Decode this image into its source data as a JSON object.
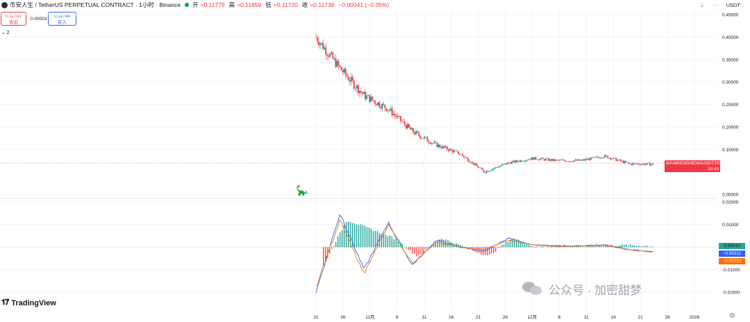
{
  "header": {
    "title": "币安人生 / TetherUS PERPETUAL CONTRACT · 1小时 · Binance",
    "ohlc": [
      {
        "label": "开",
        "value": "=0.11779"
      },
      {
        "label": "高",
        "value": "=0.11859"
      },
      {
        "label": "低",
        "value": "=0.11720"
      },
      {
        "label": "收",
        "value": "=0.11738"
      },
      {
        "label": "",
        "value": "−0.00041 (−0.35%)"
      }
    ]
  },
  "trade": {
    "sell_price": "0.11741",
    "sell_label": "卖出",
    "spread": "0.00003",
    "buy_price": "0.11744",
    "buy_label": "买入"
  },
  "indicator_collapse": "⌄ 2",
  "top_right": {
    "currency": "USDT",
    "arrow_icon": "download-arrow-icon",
    "more_icon": "more-dots-icon"
  },
  "price_tag": {
    "symbol": "BIANRENSHENGUSDT.P",
    "price": "0.11738",
    "countdown": "33:43"
  },
  "indicator_tags": [
    "0.00010",
    "−0.00211",
    "−0.00221"
  ],
  "logo": {
    "name": "TradingView",
    "icon": "tradingview-logo-icon"
  },
  "watermark": {
    "text": "公众号 · 加密甜梦",
    "icon": "wechat-icon"
  },
  "colors": {
    "up": "#089981",
    "down": "#f23645",
    "macd": "#2962ff",
    "signal": "#ff6d00",
    "hist_up": "#26a69a",
    "hist_down": "#ff5252"
  },
  "chart_data": [
    {
      "type": "line",
      "name": "price",
      "x": [
        "21",
        "26",
        "11月",
        "6",
        "11",
        "16",
        "21",
        "26",
        "12月",
        "6",
        "11",
        "16",
        "21",
        "26",
        "2026"
      ],
      "y": [
        0.4,
        0.33,
        0.27,
        0.24,
        0.19,
        0.16,
        0.14,
        0.1,
        0.12,
        0.13,
        0.125,
        0.125,
        0.135,
        0.118,
        0.117
      ],
      "ylim": [
        0.05,
        0.45
      ],
      "yticks": [
        "0.45000",
        "0.40000",
        "0.35000",
        "0.30000",
        "0.25000",
        "0.20000",
        "0.15000",
        "0.05000"
      ],
      "last_price": 0.11738
    },
    {
      "type": "line",
      "name": "MACD",
      "x": [
        "21",
        "26",
        "11月",
        "6",
        "11",
        "16",
        "21",
        "26",
        "12月",
        "6",
        "11",
        "16",
        "21",
        "26",
        "2026"
      ],
      "series": [
        {
          "name": "",
          "values": [
            -0.02,
            0.015,
            -0.01,
            0.011,
            -0.008,
            0.003,
            0.0,
            -0.002,
            0.004,
            0.001,
            0.0005,
            0.0005,
            0.001,
            -0.001,
            -0.0021
          ]
        },
        {
          "name": "",
          "values": [
            -0.018,
            0.012,
            -0.012,
            0.01,
            -0.007,
            0.002,
            0.0,
            -0.001,
            0.003,
            0.001,
            0.0003,
            0.0004,
            0.0008,
            -0.0012,
            -0.0022
          ]
        }
      ],
      "ylim": [
        -0.022,
        0.021
      ],
      "yticks": [
        "0.02000",
        "0.01000",
        "-0.01000",
        "-0.02000"
      ]
    }
  ]
}
